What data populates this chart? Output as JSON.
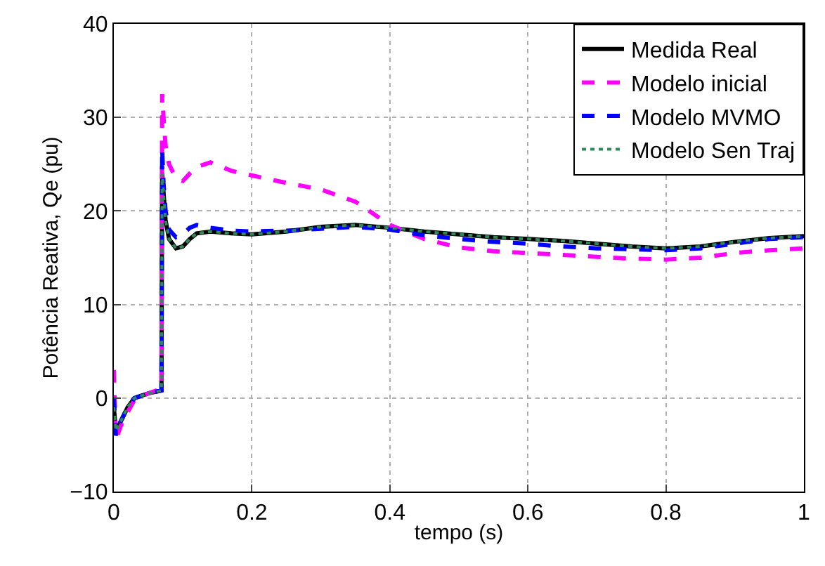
{
  "chart_data": {
    "type": "line",
    "xlabel": "tempo (s)",
    "ylabel": "Potência Reativa, Qe (pu)",
    "xlim": [
      0,
      1
    ],
    "ylim": [
      -10,
      40
    ],
    "xticks": [
      0,
      0.2,
      0.4,
      0.6,
      0.8,
      1
    ],
    "yticks": [
      {
        "value": -10,
        "label": "−10"
      },
      0,
      10,
      20,
      30,
      40
    ],
    "grid": true,
    "legend": "top right",
    "x": [
      0,
      0.003,
      0.01,
      0.02,
      0.03,
      0.05,
      0.069,
      0.07,
      0.072,
      0.075,
      0.08,
      0.09,
      0.1,
      0.11,
      0.12,
      0.14,
      0.17,
      0.2,
      0.25,
      0.3,
      0.35,
      0.4,
      0.45,
      0.5,
      0.55,
      0.6,
      0.65,
      0.7,
      0.75,
      0.8,
      0.85,
      0.9,
      0.95,
      1
    ],
    "series": [
      {
        "name": "Medida Real",
        "color": "#000000",
        "line_style": "solid",
        "values": [
          -1,
          -3.5,
          -2.5,
          -1,
          0,
          0.5,
          0.8,
          24,
          22,
          19,
          17,
          16,
          16.2,
          17,
          17.6,
          17.8,
          17.6,
          17.5,
          17.8,
          18.3,
          18.5,
          18.2,
          17.8,
          17.5,
          17.2,
          17,
          16.8,
          16.5,
          16.2,
          16,
          16.2,
          16.7,
          17.1,
          17.3
        ]
      },
      {
        "name": "Modelo inicial",
        "color": "#ff00ff",
        "line_style": "dashed",
        "values": [
          3,
          -4.5,
          -3,
          -1.5,
          -0.2,
          0.5,
          1,
          32.5,
          30,
          27,
          25,
          23.5,
          23.2,
          24,
          24.7,
          25.2,
          24.3,
          23.8,
          23,
          22.3,
          21,
          18.5,
          17,
          16.1,
          15.7,
          15.5,
          15.3,
          15.1,
          14.9,
          14.8,
          15,
          15.5,
          15.8,
          16
        ]
      },
      {
        "name": "Modelo MVMO",
        "color": "#0000ff",
        "line_style": "dashed",
        "values": [
          0,
          -4,
          -2.5,
          -1,
          0,
          0.5,
          0.8,
          26.7,
          23,
          20,
          18,
          17.2,
          17.5,
          18.2,
          18.5,
          18.2,
          17.9,
          17.8,
          17.9,
          18.1,
          18.3,
          18,
          17.4,
          17,
          16.7,
          16.5,
          16.2,
          16,
          15.9,
          15.8,
          16,
          16.5,
          17,
          17.2
        ]
      },
      {
        "name": "Modelo Sen Traj",
        "color": "#2e8b57",
        "line_style": "dotted",
        "values": [
          -1,
          -3.5,
          -2.5,
          -1,
          0,
          0.5,
          0.8,
          24,
          22,
          19,
          17,
          16,
          16.2,
          17,
          17.6,
          17.8,
          17.6,
          17.5,
          17.8,
          18.3,
          18.5,
          18.2,
          17.8,
          17.5,
          17.2,
          17,
          16.8,
          16.5,
          16.2,
          16,
          16.2,
          16.7,
          17.1,
          17.3
        ]
      }
    ]
  }
}
